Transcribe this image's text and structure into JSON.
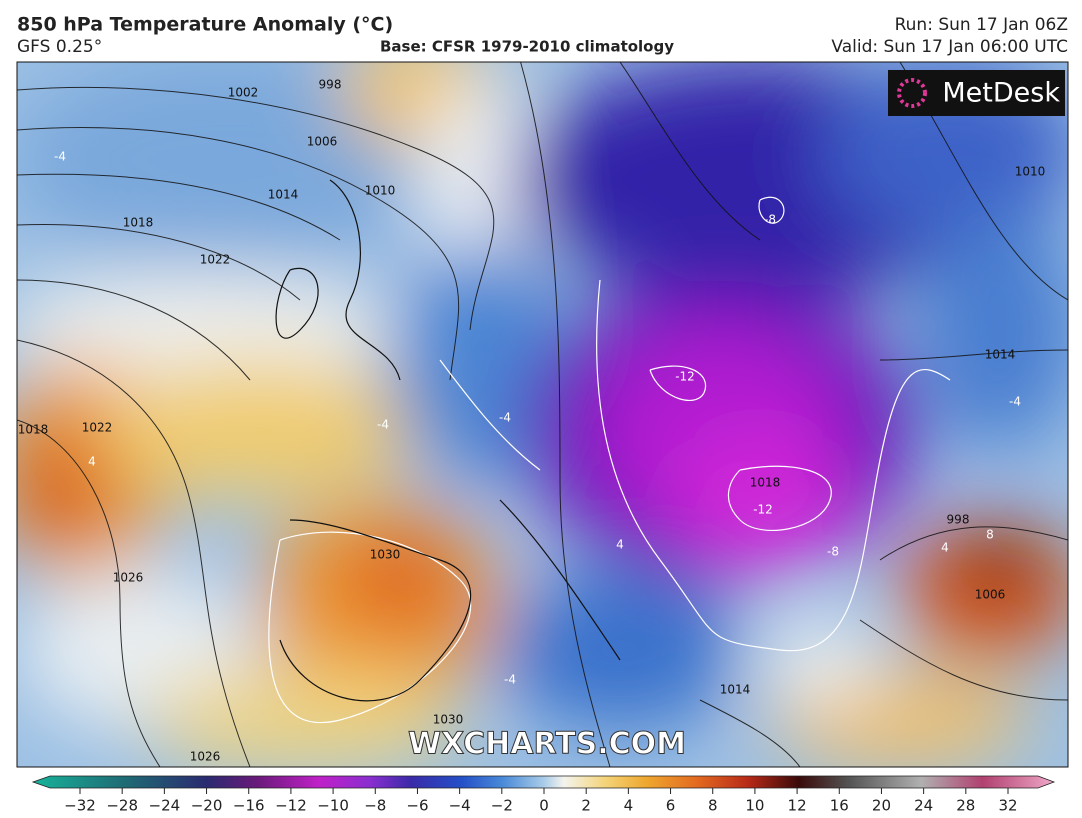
{
  "header": {
    "title": "850 hPa Temperature Anomaly (°C)",
    "model": "GFS 0.25°",
    "base": "Base: CFSR 1979-2010 climatology",
    "run": "Run: Sun 17 Jan 06Z",
    "valid": "Valid: Sun 17 Jan 06:00 UTC"
  },
  "logo": "MetDesk",
  "watermark": "WXCHARTS.COM",
  "map": {
    "isobar_labels": [
      "998",
      "1002",
      "1006",
      "1010",
      "1014",
      "1018",
      "1022",
      "1022",
      "1018",
      "1026",
      "1030",
      "1030",
      "1026",
      "1014",
      "1014",
      "1010",
      "1018",
      "998",
      "1006"
    ],
    "anomaly_labels": [
      "-4",
      "-8",
      "-12",
      "-12",
      "-8",
      "-4",
      "-4",
      "4",
      "4",
      "-4",
      "4",
      "-4",
      "8"
    ]
  },
  "colorbar": {
    "ticks": [
      {
        "value": -32,
        "label": "−32"
      },
      {
        "value": -28,
        "label": "−28"
      },
      {
        "value": -24,
        "label": "−24"
      },
      {
        "value": -20,
        "label": "−20"
      },
      {
        "value": -16,
        "label": "−16"
      },
      {
        "value": -12,
        "label": "−12"
      },
      {
        "value": -10,
        "label": "−10"
      },
      {
        "value": -8,
        "label": "−8"
      },
      {
        "value": -6,
        "label": "−6"
      },
      {
        "value": -4,
        "label": "−4"
      },
      {
        "value": -2,
        "label": "−2"
      },
      0,
      2,
      4,
      6,
      8,
      10,
      12,
      16,
      20,
      24,
      28,
      32
    ]
  }
}
